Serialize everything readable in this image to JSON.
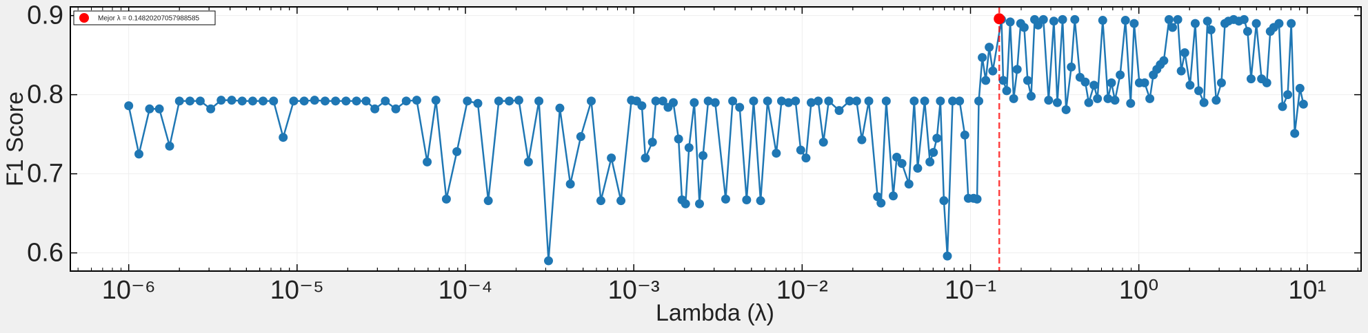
{
  "chart_data": {
    "type": "line",
    "xlabel": "Lambda (λ)",
    "ylabel": "F1 Score",
    "xscale": "log",
    "grid": true,
    "legend": "upper left",
    "xlim": [
      4.5e-07,
      20.9
    ],
    "ylim": [
      0.577,
      0.911
    ],
    "xticks": [
      {
        "value": 1e-06,
        "label": "10⁻⁶"
      },
      {
        "value": 1e-05,
        "label": "10⁻⁵"
      },
      {
        "value": 0.0001,
        "label": "10⁻⁴"
      },
      {
        "value": 0.001,
        "label": "10⁻³"
      },
      {
        "value": 0.01,
        "label": "10⁻²"
      },
      {
        "value": 0.1,
        "label": "10⁻¹"
      },
      {
        "value": 1,
        "label": "10⁰"
      },
      {
        "value": 10,
        "label": "10¹"
      }
    ],
    "yticks": [
      0.6,
      0.7,
      0.8,
      0.9
    ],
    "x": [
      1e-06,
      1.15e-06,
      1.33e-06,
      1.52e-06,
      1.75e-06,
      2e-06,
      2.31e-06,
      2.66e-06,
      3.07e-06,
      3.54e-06,
      4.09e-06,
      4.72e-06,
      5.45e-06,
      6.28e-06,
      7.25e-06,
      8.27e-06,
      9.55e-06,
      1.102e-05,
      1.271e-05,
      1.467e-05,
      1.693e-05,
      1.953e-05,
      2.254e-05,
      2.57e-05,
      2.897e-05,
      3.343e-05,
      3.858e-05,
      4.452e-05,
      5.137e-05,
      5.928e-05,
      6.679e-05,
      7.707e-05,
      8.896e-05,
      0.0001027,
      0.0001185,
      0.0001367,
      0.0001578,
      0.0001821,
      0.0002076,
      0.0002367,
      0.0002732,
      0.0003115,
      0.0003638,
      0.0004199,
      0.0004845,
      0.0005591,
      0.0006376,
      0.0007357,
      0.0008391,
      0.0009683,
      0.00104,
      0.001117,
      0.001172,
      0.00129,
      0.001352,
      0.001488,
      0.001598,
      0.001717,
      0.001845,
      0.001934,
      0.00203,
      0.002129,
      0.002287,
      0.002457,
      0.002577,
      0.002768,
      0.003045,
      0.003514,
      0.003867,
      0.004255,
      0.004681,
      0.00515,
      0.005666,
      0.006233,
      0.007024,
      0.007546,
      0.008302,
      0.009133,
      0.009811,
      0.01054,
      0.01132,
      0.01246,
      0.01338,
      0.01438,
      0.01659,
      0.01914,
      0.02106,
      0.02262,
      0.02489,
      0.02805,
      0.02942,
      0.0316,
      0.03477,
      0.03647,
      0.03917,
      0.0431,
      0.0463,
      0.04857,
      0.05344,
      0.05741,
      0.06022,
      0.06316,
      0.06624,
      0.0695,
      0.07289,
      0.0783,
      0.08614,
      0.09254,
      0.09706,
      0.1043,
      0.1094,
      0.112,
      0.1175,
      0.1232,
      0.1292,
      0.1356,
      0.1528,
      0.1565,
      0.1641,
      0.1721,
      0.1805,
      0.1894,
      0.1987,
      0.2084,
      0.2185,
      0.2293,
      0.2404,
      0.2522,
      0.271,
      0.2911,
      0.3127,
      0.328,
      0.3524,
      0.3696,
      0.397,
      0.4164,
      0.4473,
      0.4805,
      0.504,
      0.5415,
      0.5679,
      0.6101,
      0.6554,
      0.6875,
      0.7211,
      0.7746,
      0.8321,
      0.8939,
      0.9376,
      1.007,
      1.082,
      1.162,
      1.219,
      1.279,
      1.341,
      1.407,
      1.511,
      1.585,
      1.703,
      1.786,
      1.874,
      2.013,
      2.162,
      2.268,
      2.437,
      2.556,
      2.681,
      2.88,
      3.094,
      3.245,
      3.404,
      3.656,
      3.928,
      4.219,
      4.426,
      4.642,
      4.987,
      5.357,
      5.754,
      6.036,
      6.33,
      6.801,
      7.133,
      7.662,
      8.037,
      8.43,
      9.057,
      9.5
    ],
    "series": [
      {
        "color": "#1f77b4",
        "values": [
          0.786,
          0.725,
          0.782,
          0.782,
          0.735,
          0.792,
          0.792,
          0.792,
          0.782,
          0.793,
          0.793,
          0.792,
          0.792,
          0.792,
          0.792,
          0.746,
          0.792,
          0.792,
          0.793,
          0.792,
          0.792,
          0.792,
          0.792,
          0.792,
          0.782,
          0.792,
          0.782,
          0.792,
          0.793,
          0.715,
          0.793,
          0.668,
          0.728,
          0.792,
          0.789,
          0.666,
          0.792,
          0.792,
          0.793,
          0.715,
          0.792,
          0.59,
          0.783,
          0.687,
          0.747,
          0.792,
          0.666,
          0.72,
          0.666,
          0.793,
          0.792,
          0.786,
          0.72,
          0.74,
          0.792,
          0.792,
          0.784,
          0.79,
          0.744,
          0.667,
          0.662,
          0.733,
          0.79,
          0.662,
          0.723,
          0.792,
          0.79,
          0.668,
          0.792,
          0.784,
          0.667,
          0.792,
          0.666,
          0.792,
          0.726,
          0.792,
          0.79,
          0.792,
          0.73,
          0.72,
          0.79,
          0.792,
          0.74,
          0.792,
          0.78,
          0.792,
          0.792,
          0.743,
          0.792,
          0.671,
          0.663,
          0.792,
          0.672,
          0.721,
          0.713,
          0.687,
          0.792,
          0.707,
          0.792,
          0.715,
          0.727,
          0.745,
          0.792,
          0.666,
          0.596,
          0.792,
          0.792,
          0.749,
          0.669,
          0.669,
          0.668,
          0.792,
          0.847,
          0.818,
          0.86,
          0.83,
          0.895,
          0.818,
          0.805,
          0.892,
          0.795,
          0.832,
          0.89,
          0.885,
          0.818,
          0.798,
          0.895,
          0.888,
          0.895,
          0.793,
          0.893,
          0.79,
          0.895,
          0.781,
          0.835,
          0.895,
          0.822,
          0.816,
          0.79,
          0.812,
          0.795,
          0.894,
          0.795,
          0.815,
          0.793,
          0.825,
          0.894,
          0.789,
          0.89,
          0.815,
          0.815,
          0.795,
          0.825,
          0.832,
          0.838,
          0.843,
          0.895,
          0.885,
          0.895,
          0.83,
          0.853,
          0.812,
          0.89,
          0.805,
          0.79,
          0.893,
          0.882,
          0.793,
          0.815,
          0.89,
          0.893,
          0.895,
          0.893,
          0.895,
          0.88,
          0.82,
          0.89,
          0.82,
          0.815,
          0.88,
          0.885,
          0.89,
          0.785,
          0.8,
          0.89,
          0.751,
          0.808,
          0.788
        ]
      }
    ],
    "best": {
      "x": 0.14820207057988585,
      "y": 0.896,
      "color": "#ff0000",
      "label": "Mejor λ = 0.14820207057988585"
    }
  }
}
